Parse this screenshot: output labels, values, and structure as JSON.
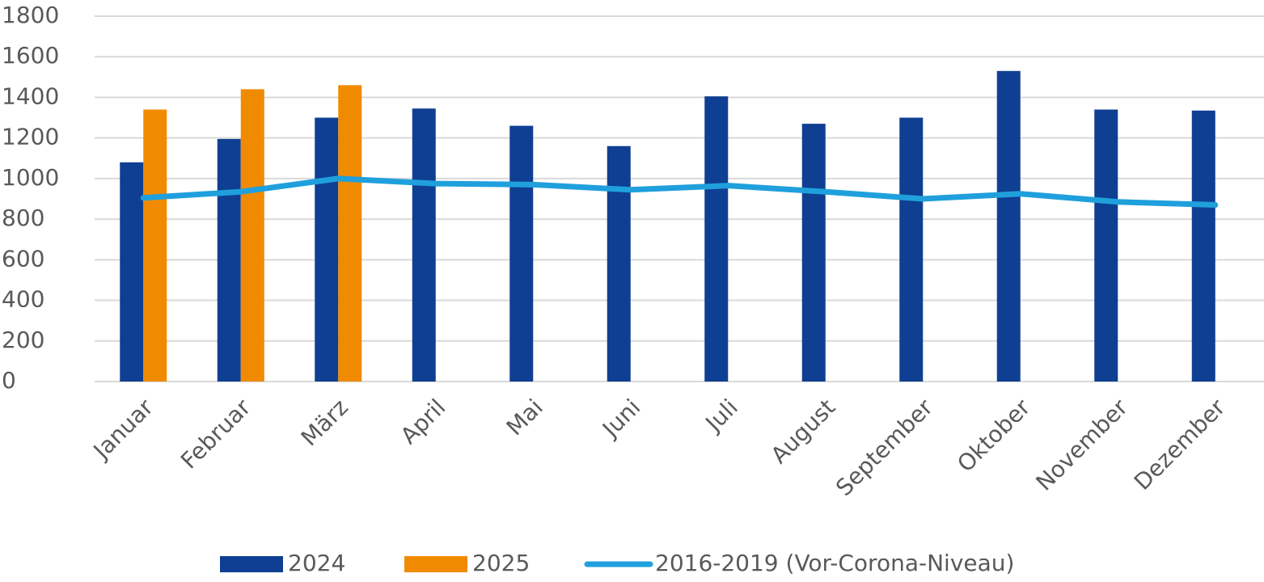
{
  "chart_data": {
    "type": "bar",
    "categories": [
      "Januar",
      "Februar",
      "März",
      "April",
      "Mai",
      "Juni",
      "Juli",
      "August",
      "September",
      "Oktober",
      "November",
      "Dezember"
    ],
    "series": [
      {
        "name": "2024",
        "color": "#0f3f92",
        "values": [
          1080,
          1195,
          1300,
          1345,
          1260,
          1160,
          1405,
          1270,
          1300,
          1530,
          1340,
          1335
        ]
      },
      {
        "name": "2025",
        "color": "#f08a00",
        "values": [
          1340,
          1440,
          1460,
          null,
          null,
          null,
          null,
          null,
          null,
          null,
          null,
          null
        ]
      },
      {
        "name": "2016-2019 (Vor-Corona-Niveau)",
        "color": "#1fa0dc",
        "type": "line",
        "values": [
          905,
          935,
          1000,
          975,
          970,
          945,
          965,
          935,
          900,
          925,
          885,
          870
        ]
      }
    ],
    "ylim": [
      0,
      1800
    ],
    "yticks": [
      0,
      200,
      400,
      600,
      800,
      1000,
      1200,
      1400,
      1600,
      1800
    ],
    "grid": true,
    "legend": "bottom"
  }
}
